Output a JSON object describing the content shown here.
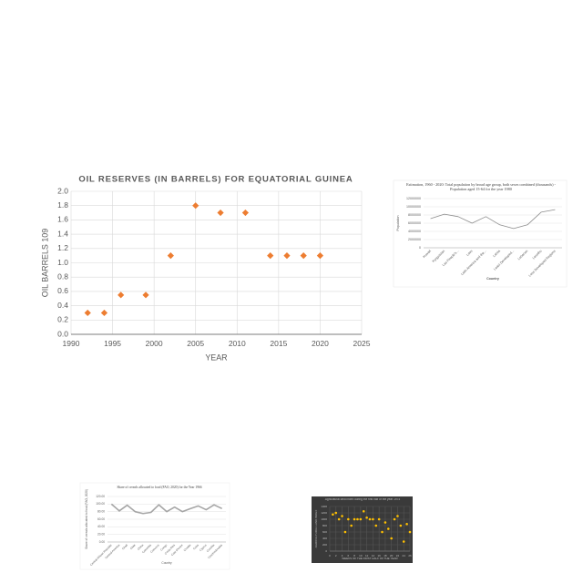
{
  "chart_data": [
    {
      "type": "scatter",
      "title": "OIL RESERVES (IN BARRELS) FOR EQUATORIAL GUINEA",
      "x_label": "YEAR",
      "y_label": "OIL BARRELS 109",
      "x": [
        1992,
        1994,
        1996,
        1999,
        2002,
        2005,
        2008,
        2011,
        2014,
        2016,
        2018,
        2020
      ],
      "values": [
        0.3,
        0.3,
        0.55,
        0.55,
        1.1,
        1.8,
        1.7,
        1.7,
        1.1,
        1.1,
        1.1,
        1.1
      ],
      "color": "#ed7d31",
      "marker": "diamond",
      "grid": true,
      "xlim": [
        1990,
        2025
      ],
      "xticks": [
        1990,
        1995,
        2000,
        2005,
        2010,
        2015,
        2020,
        2025
      ],
      "ylim": [
        0,
        2
      ],
      "yticks": [
        {
          "value": 0,
          "label": "0.0"
        },
        {
          "value": 0.2,
          "label": "0.2"
        },
        {
          "value": 0.4,
          "label": "0.4"
        },
        {
          "value": 0.6,
          "label": "0.6"
        },
        {
          "value": 0.8,
          "label": "0.8"
        },
        {
          "value": 1,
          "label": "1.0"
        },
        {
          "value": 1.2,
          "label": "1.2"
        },
        {
          "value": 1.4,
          "label": "1.4"
        },
        {
          "value": 1.6,
          "label": "1.6"
        },
        {
          "value": 1.8,
          "label": "1.8"
        },
        {
          "value": 2,
          "label": "2.0"
        }
      ]
    },
    {
      "type": "line",
      "title": "Estimation, 1960 - 2020: Total population by broad age group, both sexes combined (thousands) - Population aged 15-64 for the year 1980",
      "x_label": "Country",
      "y_label": "Population",
      "categories": [
        "Kuwait",
        "Kyrgyzstan",
        "Lao People's...",
        "Laos",
        "Latin America and the...",
        "Latvia",
        "Least Developed...",
        "Lebanon",
        "Lesotho",
        "Less Developed Regions"
      ],
      "values": [
        7100000,
        8200000,
        7600000,
        6000000,
        7600000,
        5600000,
        4700000,
        5600000,
        8700000,
        9300000
      ],
      "color": "#8c8c8c",
      "grid": true,
      "ylim": [
        0,
        12000000
      ],
      "yticks": [
        0,
        2000000,
        4000000,
        6000000,
        8000000,
        10000000,
        12000000
      ]
    },
    {
      "type": "line",
      "title": "Share of cereals allocated to food (FAO, 2020) for the Year 1966",
      "x_label": "Country",
      "y_label": "Share of cereals allocated to food (FAO, 2020)",
      "categories": [
        "Central African Republic",
        "Central America",
        "Chad",
        "Chile",
        "China",
        "Colombia",
        "Comoros",
        "Congo",
        "Costa Rica",
        "Cote d'Ivoire",
        "Croatia",
        "Cuba",
        "Cyprus",
        "Czechia",
        "Czechoslovakia"
      ],
      "values": [
        100,
        82,
        97,
        80,
        75,
        78,
        98,
        80,
        92,
        80,
        88,
        95,
        85,
        98,
        88
      ],
      "color": "#a6a6a6",
      "grid": true,
      "ylim": [
        0,
        120
      ],
      "yticks": [
        {
          "value": 0,
          "label": "0.00"
        },
        {
          "value": 20,
          "label": "20.00"
        },
        {
          "value": 40,
          "label": "40.00"
        },
        {
          "value": 60,
          "label": "60.00"
        },
        {
          "value": 80,
          "label": "80.00"
        },
        {
          "value": 100,
          "label": "100.00"
        },
        {
          "value": 120,
          "label": "120.00"
        }
      ]
    },
    {
      "type": "scatter",
      "title": "Agricultural land index during the first half of the year 1974",
      "x_label": "WEEKS OF THE FIRST HALF OF THE YEAR",
      "y_label": "AGRICULTURAL LAND INDEX",
      "x": [
        1,
        2,
        3,
        4,
        5,
        6,
        7,
        8,
        9,
        10,
        11,
        12,
        13,
        14,
        15,
        16,
        17,
        18,
        19,
        20,
        21,
        22,
        23,
        24,
        25,
        26
      ],
      "values": [
        1150,
        1200,
        1000,
        1100,
        600,
        1000,
        800,
        1000,
        1000,
        1000,
        1250,
        1050,
        1000,
        1000,
        800,
        1000,
        600,
        900,
        700,
        400,
        1000,
        1100,
        800,
        300,
        850,
        600
      ],
      "color": "#ffc000",
      "marker": "circle",
      "grid": true,
      "xlim": [
        0,
        26
      ],
      "xticks": [
        0,
        2,
        4,
        6,
        8,
        10,
        12,
        14,
        16,
        18,
        20,
        22,
        24,
        26
      ],
      "ylim": [
        0,
        1400
      ],
      "yticks": [
        0,
        200,
        400,
        600,
        800,
        1000,
        1200,
        1400
      ]
    }
  ]
}
